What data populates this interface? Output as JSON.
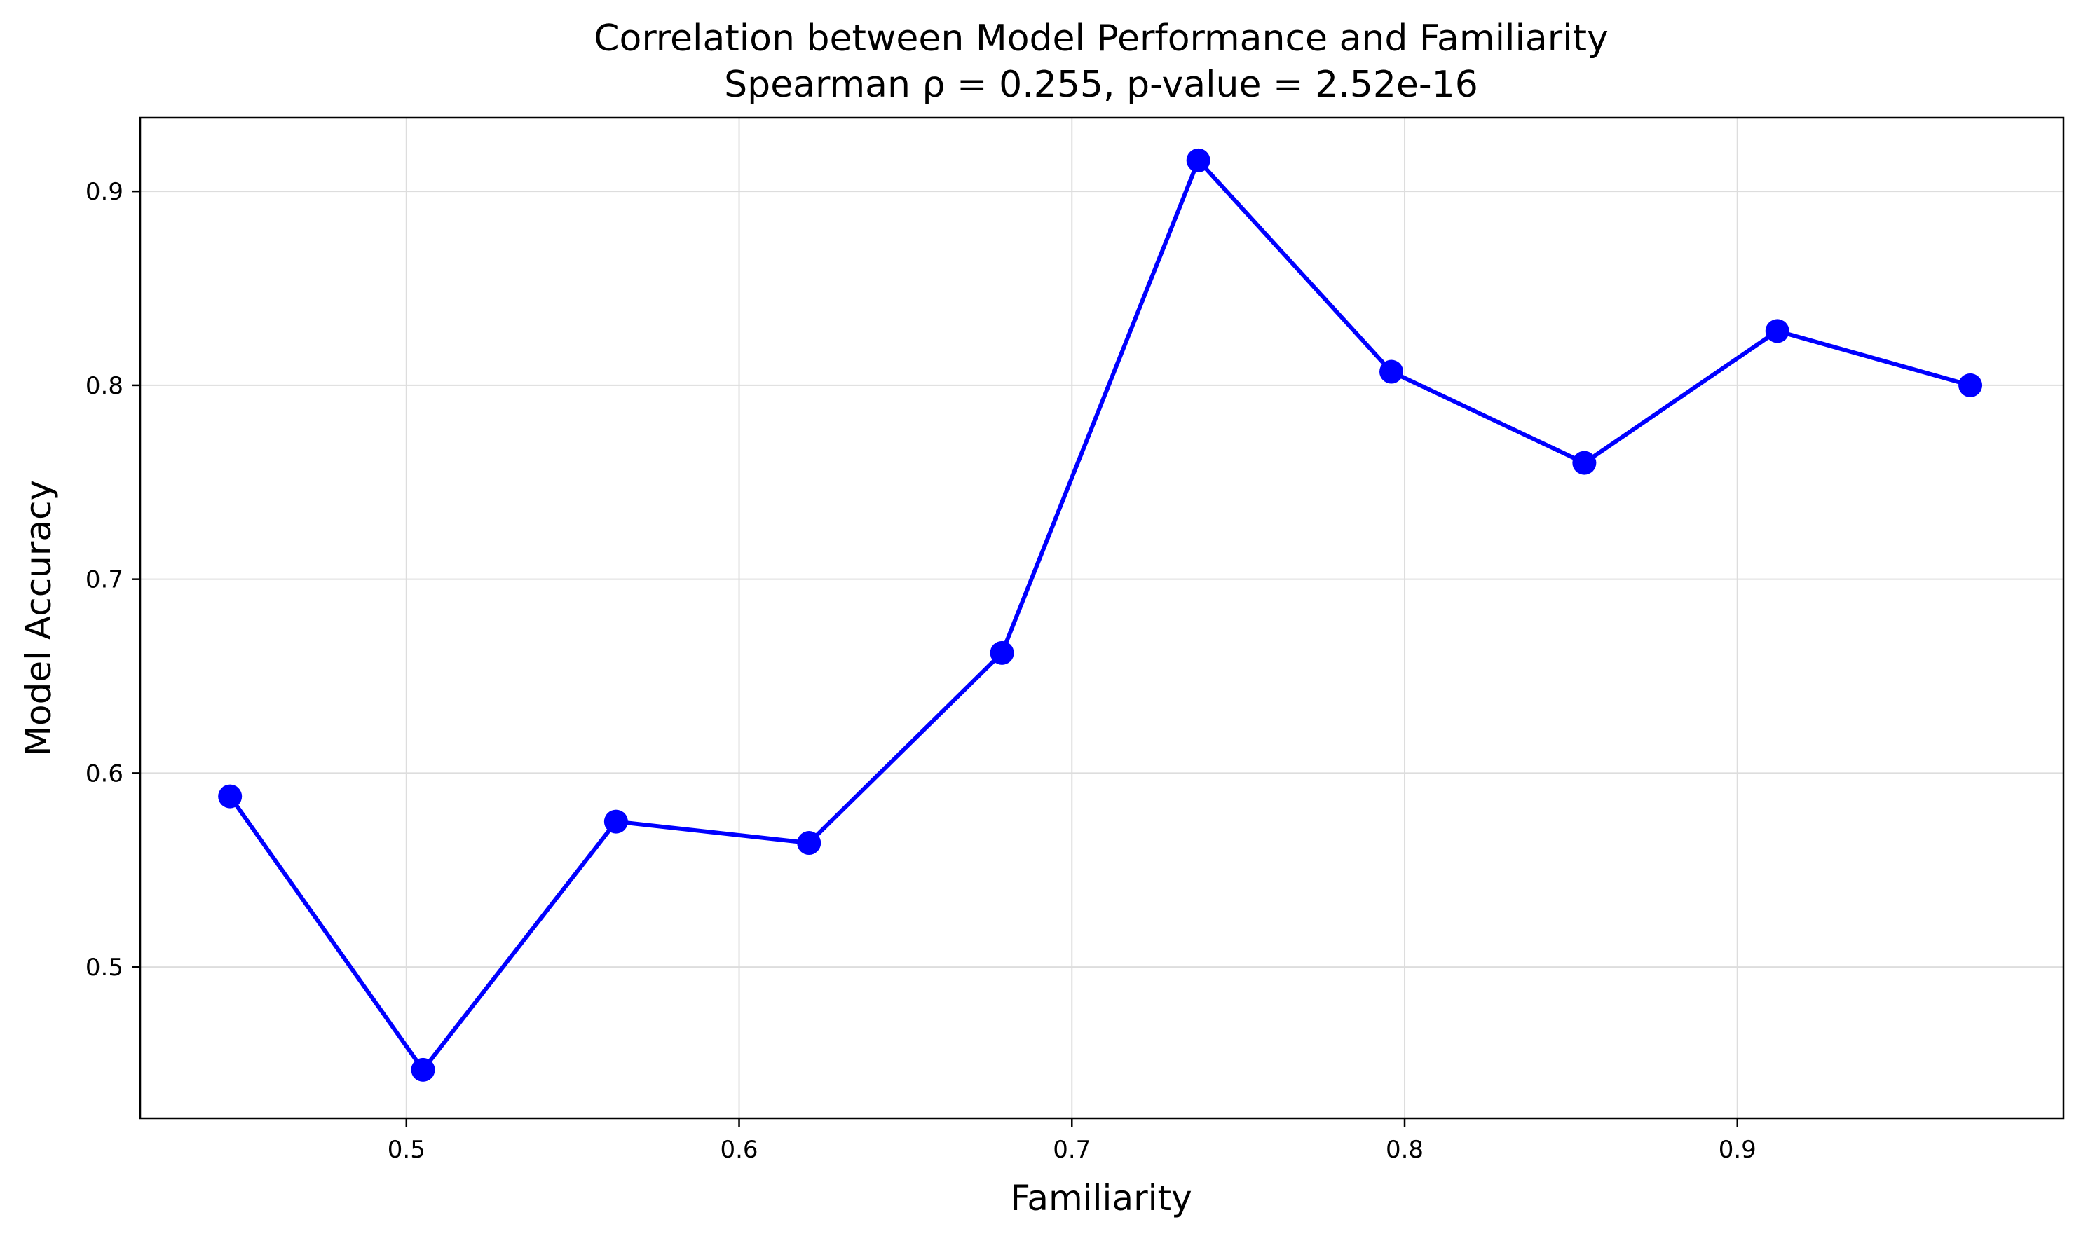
{
  "chart_data": {
    "type": "line",
    "title": "Correlation between Model Performance and Familiarity",
    "subtitle": "Spearman ρ = 0.255, p-value = 2.52e-16",
    "xlabel": "Familiarity",
    "ylabel": "Model Accuracy",
    "xlim": [
      0.42,
      0.998
    ],
    "ylim": [
      0.422,
      0.938
    ],
    "xticks": [
      0.5,
      0.6,
      0.7,
      0.8,
      0.9
    ],
    "xtick_labels": [
      "0.5",
      "0.6",
      "0.7",
      "0.8",
      "0.9"
    ],
    "yticks": [
      0.5,
      0.6,
      0.7,
      0.8,
      0.9
    ],
    "ytick_labels": [
      "0.5",
      "0.6",
      "0.7",
      "0.8",
      "0.9"
    ],
    "grid": true,
    "legend": "none",
    "series": [
      {
        "color": "#0000ff",
        "x": [
          0.447,
          0.505,
          0.563,
          0.621,
          0.679,
          0.738,
          0.796,
          0.854,
          0.912,
          0.97
        ],
        "y": [
          0.588,
          0.447,
          0.575,
          0.564,
          0.662,
          0.916,
          0.807,
          0.76,
          0.828,
          0.8
        ]
      }
    ]
  }
}
